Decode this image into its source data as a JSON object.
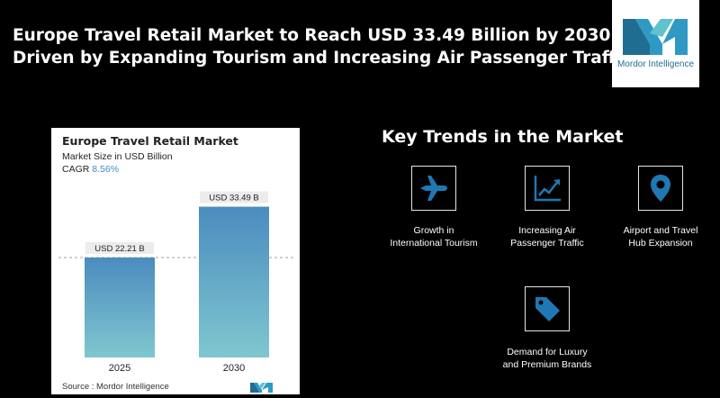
{
  "headline": {
    "line1": "Europe Travel Retail Market to Reach USD 33.49 Billion by 2030",
    "line2": "Driven by Expanding Tourism and Increasing Air Passenger Traffic"
  },
  "logo": {
    "text": "Mordor Intelligence"
  },
  "chart_data": {
    "type": "bar",
    "title": "Europe Travel Retail Market",
    "subtitle": "Market Size in USD Billion",
    "cagr_label": "CAGR",
    "cagr_value": "8.56%",
    "categories": [
      "2025",
      "2030"
    ],
    "values": [
      22.21,
      33.49
    ],
    "data_labels": [
      "USD 22.21 B",
      "USD 33.49 B"
    ],
    "ylim": [
      0,
      36
    ],
    "grid": false,
    "reference_line": 22.21,
    "source": "Source :  Mordor Intelligence"
  },
  "trends": {
    "title": "Key Trends in the Market",
    "items": [
      {
        "icon": "airplane-icon",
        "line1": "Growth in",
        "line2": "International Tourism"
      },
      {
        "icon": "line-chart-icon",
        "line1": "Increasing Air",
        "line2": "Passenger Traffic"
      },
      {
        "icon": "location-pin-icon",
        "line1": "Airport and Travel",
        "line2": "Hub Expansion"
      },
      {
        "icon": "price-tag-icon",
        "line1": "Demand for Luxury",
        "line2": "and Premium Brands"
      }
    ]
  },
  "colors": {
    "bar_top": "#4b8cbf",
    "bar_bottom": "#7fc7cf",
    "accent": "#3a8fc4",
    "icon": "#1f78b4"
  }
}
